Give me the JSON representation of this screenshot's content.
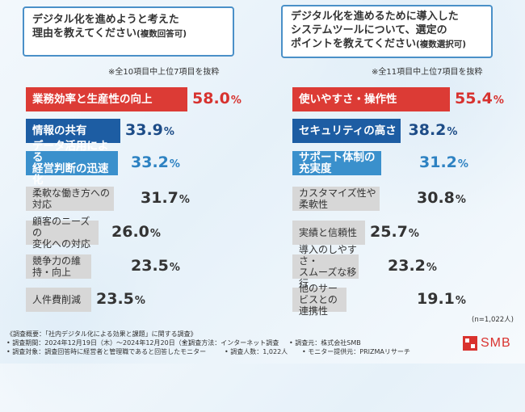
{
  "colors": {
    "red": "#dc3b35",
    "navy": "#1d5da3",
    "blue": "#3a90cc",
    "gray": "#d7d7d7",
    "red_text": "#d7322f",
    "navy_text": "#1d4c87",
    "blue_text": "#2d82c2",
    "gray_text": "#333333"
  },
  "left": {
    "title_line1": "デジタル化を進めようと考えた",
    "title_line2": "理由を教えてください",
    "title_suffix": "(複数回答可)",
    "note": "※全10項目中上位7項目を抜粋"
  },
  "right": {
    "title_line1": "デジタル化を進めるために導入した",
    "title_line2": "システムツールについて、選定の",
    "title_line3": "ポイントを教えてください",
    "title_suffix": "(複数選択可)",
    "note": "※全11項目中上位7項目を抜粋"
  },
  "chart_data": [
    {
      "type": "bar",
      "orientation": "horizontal",
      "title": "デジタル化を進めようと考えた理由を教えてください(複数回答可)",
      "unit": "%",
      "categories": [
        "業務効率と生産性の向上",
        "情報の共有",
        "データ活用による\n経営判断の迅速化",
        "柔軟な働き方への対応",
        "顧客のニーズの\n変化への対応",
        "競争力の維持・向上",
        "人件費削減"
      ],
      "values": [
        58.0,
        33.9,
        33.2,
        31.7,
        26.0,
        23.5,
        23.5
      ],
      "styles": [
        "red",
        "navy",
        "blue",
        "gray",
        "gray",
        "gray",
        "gray"
      ],
      "max": 58.0
    },
    {
      "type": "bar",
      "orientation": "horizontal",
      "title": "デジタル化を進めるために導入したシステムツールについて、選定のポイントを教えてください(複数選択可)",
      "unit": "%",
      "categories": [
        "使いやすさ・操作性",
        "セキュリティの高さ",
        "サポート体制の充実度",
        "カスタマイズ性や柔軟性",
        "実績と信頼性",
        "導入のしやすさ・\nスムーズな移行",
        "他のサービスとの連携性"
      ],
      "values": [
        55.4,
        38.2,
        31.2,
        30.8,
        25.7,
        23.2,
        19.1
      ],
      "styles": [
        "red",
        "navy",
        "blue",
        "gray",
        "gray",
        "gray",
        "gray"
      ],
      "max": 55.4
    }
  ],
  "footer": {
    "n_count": "(n=1,022人)",
    "line1": "《調査概要：「社内デジタル化による効果と課題」に関する調査》",
    "line2a": "• 調査期間：2024年12月19日（木）～2024年12月20日（金）",
    "line2b": "• 調査方法：インターネット調査",
    "line2c": "• 調査元：株式会社SMB",
    "line3a": "• 調査対象：調査回答時に経営者と管理職であると回答したモニター",
    "line3b": "• 調査人数：1,022人",
    "line3c": "• モニター提供元：PRIZMAリサーチ",
    "logo": "SMB"
  }
}
